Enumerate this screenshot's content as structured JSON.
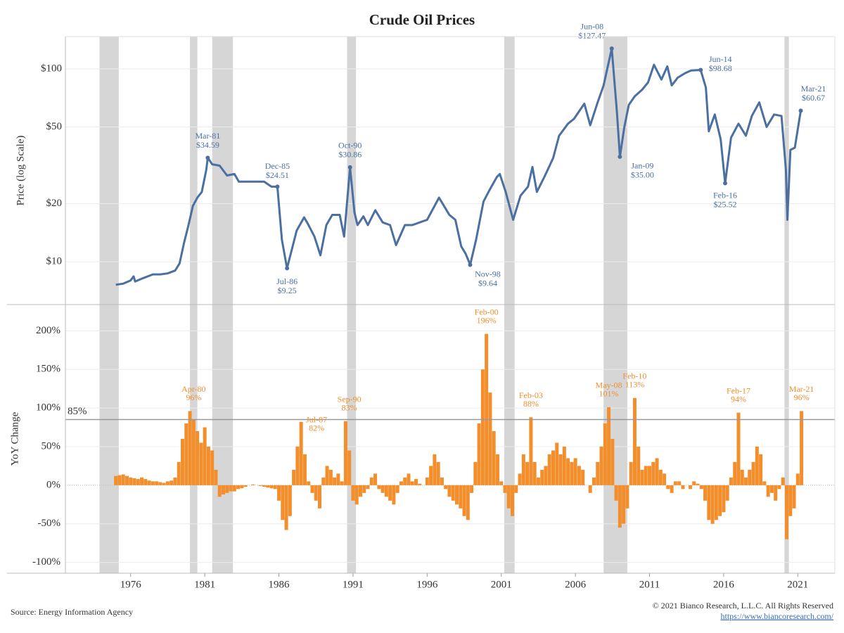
{
  "title": "Crude Oil Prices",
  "source": "Source: Energy Information Agency",
  "copyright": "© 2021 Bianco Research, L.L.C. All Rights Reserved",
  "url": "https://www.biancoresearch.com/",
  "recessions": [
    [
      1973.9,
      1975.2
    ],
    [
      1980.0,
      1980.5
    ],
    [
      1981.5,
      1982.9
    ],
    [
      1990.6,
      1991.2
    ],
    [
      2001.2,
      2001.9
    ],
    [
      2007.9,
      2009.5
    ],
    [
      2020.1,
      2020.4
    ]
  ],
  "chart_data": [
    {
      "type": "line",
      "ylabel": "Price (log Scale)",
      "log_scale": true,
      "color": "#4a6fa0",
      "xlim": [
        1971.6,
        2023.5
      ],
      "ylim": [
        6,
        147
      ],
      "yticks": [
        {
          "value": 10,
          "label": "$10"
        },
        {
          "value": 20,
          "label": "$20"
        },
        {
          "value": 50,
          "label": "$50"
        },
        {
          "value": 100,
          "label": "$100"
        }
      ],
      "grid": true,
      "x": [
        1975.0,
        1975.5,
        1976.0,
        1976.2,
        1976.3,
        1976.8,
        1977.5,
        1978.0,
        1978.5,
        1979.0,
        1979.3,
        1979.6,
        1979.9,
        1980.2,
        1980.5,
        1980.8,
        1981.1,
        1981.2,
        1981.5,
        1982.0,
        1982.5,
        1983.0,
        1983.3,
        1984.0,
        1985.0,
        1985.5,
        1985.9,
        1986.2,
        1986.55,
        1986.8,
        1987.2,
        1987.7,
        1988.0,
        1988.4,
        1988.8,
        1989.2,
        1989.6,
        1990.1,
        1990.4,
        1990.8,
        1991.1,
        1991.3,
        1991.7,
        1992.0,
        1992.5,
        1993.0,
        1993.5,
        1993.9,
        1994.5,
        1995.0,
        1995.5,
        1996.0,
        1996.8,
        1997.5,
        1997.9,
        1998.3,
        1998.6,
        1998.9,
        1999.3,
        1999.8,
        2000.2,
        2000.7,
        2000.9,
        2001.3,
        2001.8,
        2002.3,
        2002.8,
        2003.1,
        2003.4,
        2003.9,
        2004.5,
        2004.9,
        2005.5,
        2005.9,
        2006.6,
        2007.0,
        2007.5,
        2007.9,
        2008.45,
        2008.8,
        2009.0,
        2009.3,
        2009.6,
        2010.0,
        2010.5,
        2010.9,
        2011.3,
        2011.8,
        2012.2,
        2012.5,
        2012.9,
        2013.4,
        2013.8,
        2014.45,
        2014.8,
        2015.0,
        2015.4,
        2015.8,
        2016.1,
        2016.5,
        2017.0,
        2017.5,
        2017.9,
        2018.4,
        2018.9,
        2019.4,
        2019.9,
        2020.2,
        2020.3,
        2020.5,
        2020.8,
        2021.2
      ],
      "values": [
        7.6,
        7.7,
        8.0,
        8.4,
        7.9,
        8.2,
        8.6,
        8.6,
        8.7,
        9.0,
        9.8,
        12.5,
        15.5,
        19.5,
        21.5,
        23,
        30,
        34.59,
        32,
        31.5,
        28,
        28.5,
        26,
        26,
        26,
        24.5,
        24.51,
        13,
        9.25,
        11,
        14.5,
        17,
        15.5,
        13.5,
        10.8,
        15.5,
        17.5,
        17.5,
        13.5,
        30.86,
        18,
        15.5,
        17.2,
        15.5,
        18.5,
        16,
        15.5,
        12.2,
        15.5,
        15.5,
        16,
        16.5,
        21.5,
        17.5,
        16.5,
        12,
        11,
        9.64,
        13,
        20.5,
        23.5,
        27.5,
        28.5,
        23,
        16.5,
        22,
        24.5,
        31,
        23,
        27.5,
        34.5,
        45,
        52,
        55,
        66,
        51,
        67,
        82,
        127.47,
        60,
        35,
        50,
        65,
        72,
        78,
        85,
        105,
        88,
        103,
        82,
        90,
        95,
        98,
        98.68,
        80,
        47.5,
        58,
        43,
        25.52,
        44,
        52,
        45,
        57,
        67,
        50,
        58,
        57,
        30,
        16.5,
        38,
        39,
        60.67
      ],
      "annotations": [
        {
          "x": 1981.2,
          "value": 34.59,
          "date": "Mar-81",
          "label": "$34.59"
        },
        {
          "x": 1985.9,
          "value": 24.51,
          "date": "Dec-85",
          "label": "$24.51"
        },
        {
          "x": 1986.55,
          "value": 9.25,
          "date": "Jul-86",
          "label": "$9.25"
        },
        {
          "x": 1990.8,
          "value": 30.86,
          "date": "Oct-90",
          "label": "$30.86"
        },
        {
          "x": 1998.9,
          "value": 9.64,
          "date": "Nov-98",
          "label": "$9.64"
        },
        {
          "x": 2008.45,
          "value": 127.47,
          "date": "Jun-08",
          "label": "$127.47"
        },
        {
          "x": 2009.0,
          "value": 35,
          "date": "Jan-09",
          "label": "$35.00"
        },
        {
          "x": 2014.45,
          "value": 98.68,
          "date": "Jun-14",
          "label": "$98.68"
        },
        {
          "x": 2016.1,
          "value": 25.52,
          "date": "Feb-16",
          "label": "$25.52"
        },
        {
          "x": 2021.2,
          "value": 60.67,
          "date": "Mar-21",
          "label": "$60.67"
        }
      ]
    },
    {
      "type": "bar",
      "ylabel": "YoY Change",
      "color": "#f28e2b",
      "xlim": [
        1971.6,
        2023.5
      ],
      "ylim": [
        -114,
        234
      ],
      "xticks": [
        1976,
        1981,
        1986,
        1991,
        1996,
        2001,
        2006,
        2011,
        2016,
        2021
      ],
      "yticks": [
        {
          "value": -100,
          "label": "-100%"
        },
        {
          "value": -50,
          "label": "-50%"
        },
        {
          "value": 0,
          "label": "0%"
        },
        {
          "value": 50,
          "label": "50%"
        },
        {
          "value": 100,
          "label": "100%"
        },
        {
          "value": 150,
          "label": "150%"
        },
        {
          "value": 200,
          "label": "200%"
        }
      ],
      "grid": true,
      "ref_line": {
        "value": 85,
        "label": "85%"
      },
      "x": [
        1975,
        1975.25,
        1975.5,
        1975.75,
        1976,
        1976.25,
        1976.5,
        1976.75,
        1977,
        1977.25,
        1977.5,
        1977.75,
        1978,
        1978.25,
        1978.5,
        1978.75,
        1979,
        1979.25,
        1979.5,
        1979.75,
        1980,
        1980.25,
        1980.5,
        1980.75,
        1981,
        1981.25,
        1981.5,
        1981.75,
        1982,
        1982.25,
        1982.5,
        1982.75,
        1983,
        1983.25,
        1983.5,
        1983.75,
        1984,
        1984.25,
        1984.5,
        1984.75,
        1985,
        1985.25,
        1985.5,
        1985.75,
        1986,
        1986.25,
        1986.5,
        1986.75,
        1987,
        1987.25,
        1987.5,
        1987.75,
        1988,
        1988.25,
        1988.5,
        1988.75,
        1989,
        1989.25,
        1989.5,
        1989.75,
        1990,
        1990.25,
        1990.5,
        1990.75,
        1991,
        1991.25,
        1991.5,
        1991.75,
        1992,
        1992.25,
        1992.5,
        1992.75,
        1993,
        1993.25,
        1993.5,
        1993.75,
        1994,
        1994.25,
        1994.5,
        1994.75,
        1995,
        1995.25,
        1995.5,
        1995.75,
        1996,
        1996.25,
        1996.5,
        1996.75,
        1997,
        1997.25,
        1997.5,
        1997.75,
        1998,
        1998.25,
        1998.5,
        1998.75,
        1999,
        1999.25,
        1999.5,
        1999.75,
        2000,
        2000.25,
        2000.5,
        2000.75,
        2001,
        2001.25,
        2001.5,
        2001.75,
        2002,
        2002.25,
        2002.5,
        2002.75,
        2003,
        2003.25,
        2003.5,
        2003.75,
        2004,
        2004.25,
        2004.5,
        2004.75,
        2005,
        2005.25,
        2005.5,
        2005.75,
        2006,
        2006.25,
        2006.5,
        2006.75,
        2007,
        2007.25,
        2007.5,
        2007.75,
        2008,
        2008.25,
        2008.5,
        2008.75,
        2009,
        2009.25,
        2009.5,
        2009.75,
        2010,
        2010.25,
        2010.5,
        2010.75,
        2011,
        2011.25,
        2011.5,
        2011.75,
        2012,
        2012.25,
        2012.5,
        2012.75,
        2013,
        2013.25,
        2013.5,
        2013.75,
        2014,
        2014.25,
        2014.5,
        2014.75,
        2015,
        2015.25,
        2015.5,
        2015.75,
        2016,
        2016.25,
        2016.5,
        2016.75,
        2017,
        2017.25,
        2017.5,
        2017.75,
        2018,
        2018.25,
        2018.5,
        2018.75,
        2019,
        2019.25,
        2019.5,
        2019.75,
        2020,
        2020.25,
        2020.5,
        2020.75,
        2021,
        2021.25
      ],
      "values": [
        12,
        13,
        14,
        12,
        10,
        9,
        8,
        10,
        8,
        6,
        5,
        5,
        4,
        3,
        5,
        6,
        10,
        30,
        60,
        80,
        96,
        85,
        70,
        55,
        75,
        50,
        45,
        20,
        -15,
        -12,
        -10,
        -8,
        -8,
        -5,
        -4,
        -2,
        0,
        1,
        0,
        -1,
        -2,
        -3,
        -4,
        -5,
        -20,
        -45,
        -58,
        -40,
        20,
        50,
        82,
        40,
        5,
        -10,
        -20,
        -30,
        10,
        25,
        20,
        10,
        15,
        5,
        83,
        45,
        -20,
        -25,
        -15,
        -10,
        -5,
        10,
        15,
        -5,
        -10,
        -15,
        -20,
        -25,
        -10,
        5,
        10,
        15,
        5,
        8,
        2,
        0,
        10,
        25,
        40,
        30,
        10,
        -5,
        -15,
        -20,
        -25,
        -30,
        -40,
        -45,
        -10,
        30,
        80,
        150,
        196,
        120,
        70,
        40,
        5,
        -10,
        -30,
        -40,
        -10,
        15,
        40,
        30,
        88,
        30,
        10,
        20,
        25,
        40,
        45,
        55,
        40,
        50,
        35,
        30,
        35,
        25,
        20,
        0,
        -10,
        10,
        30,
        50,
        80,
        101,
        60,
        -20,
        -55,
        -50,
        -30,
        30,
        113,
        50,
        20,
        25,
        25,
        30,
        35,
        20,
        15,
        -5,
        -10,
        5,
        5,
        -5,
        0,
        -5,
        5,
        2,
        -5,
        -20,
        -45,
        -50,
        -45,
        -40,
        -35,
        -20,
        10,
        30,
        94,
        20,
        10,
        20,
        30,
        50,
        40,
        5,
        -15,
        -10,
        -20,
        -5,
        10,
        -70,
        -40,
        -30,
        15,
        96
      ],
      "annotations": [
        {
          "x": 1980.25,
          "value": 96,
          "date": "Apr-80",
          "label": "96%"
        },
        {
          "x": 1987.5,
          "value": 82,
          "date": "Jul-87",
          "label": "82%"
        },
        {
          "x": 1990.75,
          "value": 83,
          "date": "Sep-90",
          "label": "83%"
        },
        {
          "x": 2000.0,
          "value": 196,
          "date": "Feb-00",
          "label": "196%"
        },
        {
          "x": 2003.0,
          "value": 88,
          "date": "Feb-03",
          "label": "88%"
        },
        {
          "x": 2008.25,
          "value": 101,
          "date": "May-08",
          "label": "101%"
        },
        {
          "x": 2010.0,
          "value": 113,
          "date": "Feb-10",
          "label": "113%"
        },
        {
          "x": 2017.0,
          "value": 94,
          "date": "Feb-17",
          "label": "94%"
        },
        {
          "x": 2021.25,
          "value": 96,
          "date": "Mar-21",
          "label": "96%"
        }
      ]
    }
  ]
}
